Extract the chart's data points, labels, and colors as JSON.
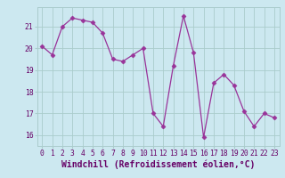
{
  "x": [
    0,
    1,
    2,
    3,
    4,
    5,
    6,
    7,
    8,
    9,
    10,
    11,
    12,
    13,
    14,
    15,
    16,
    17,
    18,
    19,
    20,
    21,
    22,
    23
  ],
  "y": [
    20.1,
    19.7,
    21.0,
    21.4,
    21.3,
    21.2,
    20.7,
    19.5,
    19.4,
    19.7,
    20.0,
    17.0,
    16.4,
    19.2,
    21.5,
    19.8,
    15.9,
    18.4,
    18.8,
    18.3,
    17.1,
    16.4,
    17.0,
    16.8
  ],
  "line_color": "#993399",
  "marker": "D",
  "marker_size": 2.5,
  "bg_color": "#cce8f0",
  "grid_color": "#aacccc",
  "xlabel": "Windchill (Refroidissement éolien,°C)",
  "ylim_min": 15.5,
  "ylim_max": 21.9,
  "xlim_min": -0.5,
  "xlim_max": 23.5,
  "yticks": [
    16,
    17,
    18,
    19,
    20,
    21
  ],
  "xticks": [
    0,
    1,
    2,
    3,
    4,
    5,
    6,
    7,
    8,
    9,
    10,
    11,
    12,
    13,
    14,
    15,
    16,
    17,
    18,
    19,
    20,
    21,
    22,
    23
  ],
  "tick_label_color": "#660066",
  "tick_label_fontsize": 5.8,
  "xlabel_fontsize": 7.0,
  "xlabel_color": "#660066",
  "line_width": 0.9
}
